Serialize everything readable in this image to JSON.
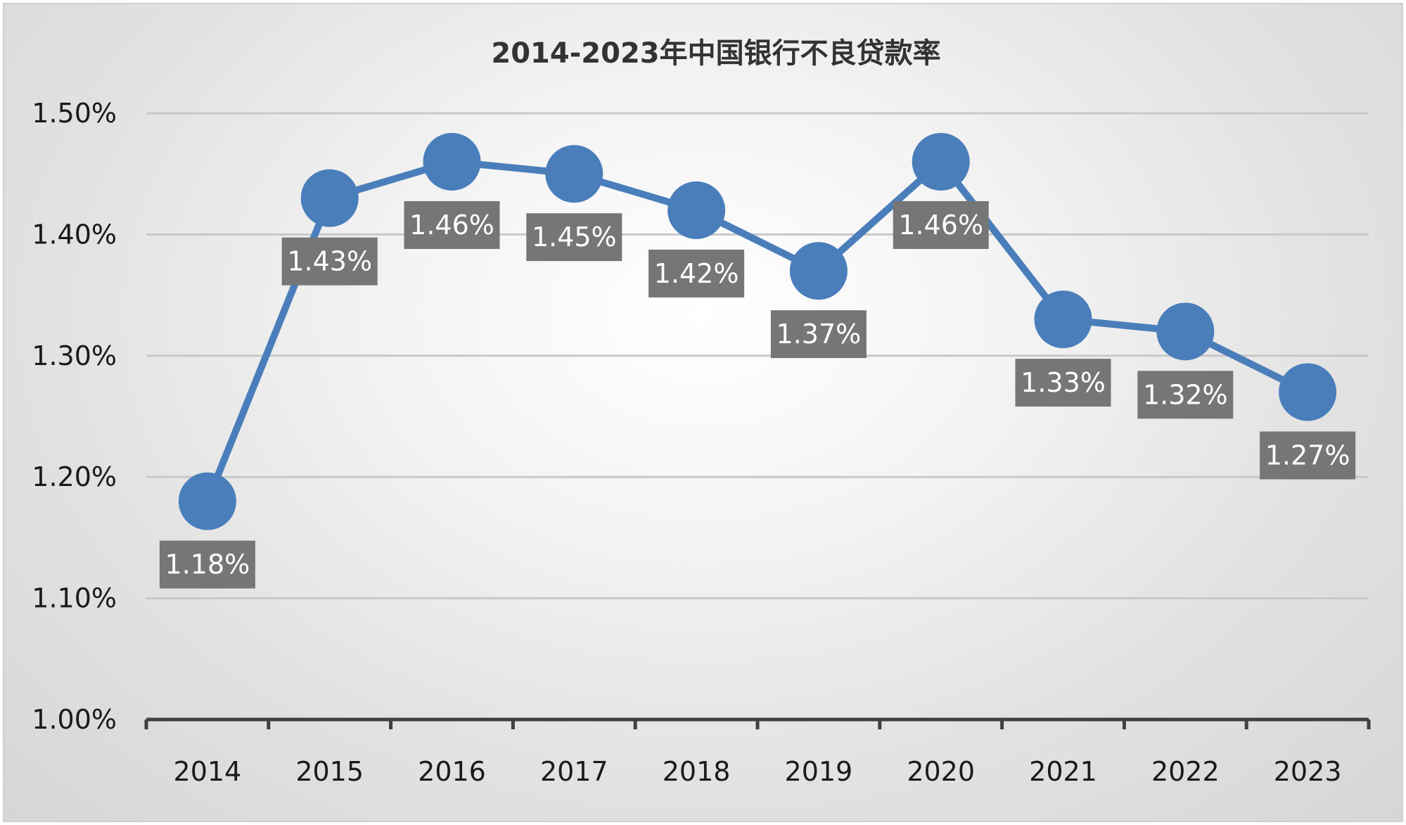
{
  "chart_data": {
    "type": "line",
    "title": "2014-2023年中国银行不良贷款率",
    "categories": [
      "2014",
      "2015",
      "2016",
      "2017",
      "2018",
      "2019",
      "2020",
      "2021",
      "2022",
      "2023"
    ],
    "values": [
      1.18,
      1.43,
      1.46,
      1.45,
      1.42,
      1.37,
      1.46,
      1.33,
      1.32,
      1.27
    ],
    "data_labels": [
      "1.18%",
      "1.43%",
      "1.46%",
      "1.45%",
      "1.42%",
      "1.37%",
      "1.46%",
      "1.33%",
      "1.32%",
      "1.27%"
    ],
    "yticks": [
      1.0,
      1.1,
      1.2,
      1.3,
      1.4,
      1.5
    ],
    "ytick_labels": [
      "1.00%",
      "1.10%",
      "1.20%",
      "1.30%",
      "1.40%",
      "1.50%"
    ],
    "ylim": [
      1.0,
      1.5
    ],
    "grid": true,
    "legend": "none",
    "colors": {
      "line": "#4a7ebb",
      "marker": "#4a7ebb",
      "label_box": "#767676",
      "label_text": "#ffffff",
      "grid": "#c8c8c8",
      "axis": "#404040"
    }
  }
}
